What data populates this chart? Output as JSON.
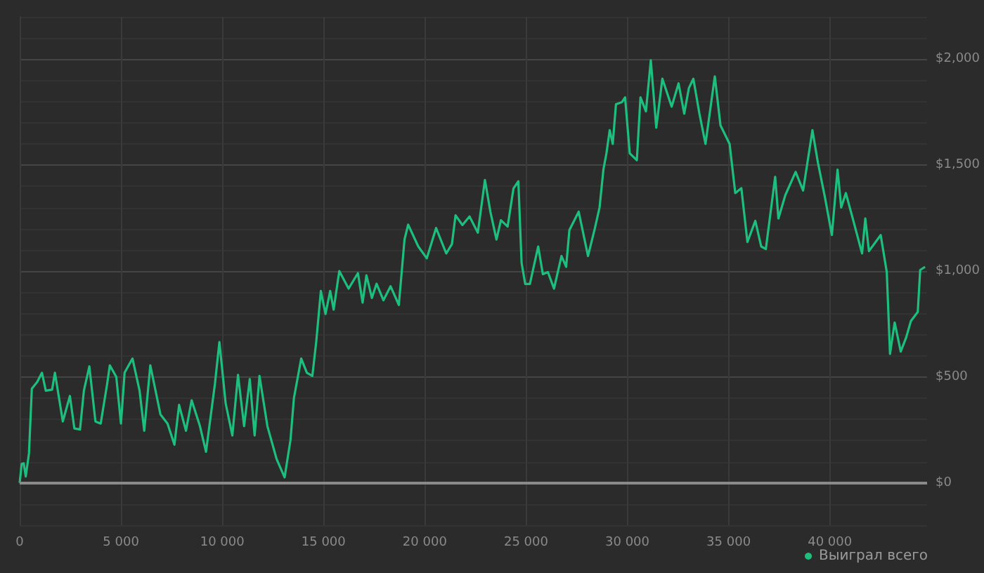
{
  "chart_data": {
    "type": "line",
    "legend": "bottom right",
    "grid": true,
    "marker": "none",
    "line_style": "solid",
    "xlim": [
      0,
      44800
    ],
    "ylim": [
      -200,
      2200
    ],
    "xticks": [
      0,
      {
        "value": 5000,
        "label": "5 000"
      },
      {
        "value": 10000,
        "label": "10 000"
      },
      {
        "value": 15000,
        "label": "15 000"
      },
      {
        "value": 20000,
        "label": "20 000"
      },
      {
        "value": 25000,
        "label": "25 000"
      },
      {
        "value": 30000,
        "label": "30 000"
      },
      {
        "value": 35000,
        "label": "35 000"
      },
      {
        "value": 40000,
        "label": "40 000"
      }
    ],
    "yticks": [
      {
        "value": -200,
        "label": null
      },
      {
        "value": -100,
        "label": null
      },
      {
        "value": 0,
        "label": "$0"
      },
      {
        "value": 100,
        "label": null
      },
      {
        "value": 200,
        "label": null
      },
      {
        "value": 300,
        "label": null
      },
      {
        "value": 400,
        "label": null
      },
      {
        "value": 500,
        "label": "$500"
      },
      {
        "value": 600,
        "label": null
      },
      {
        "value": 700,
        "label": null
      },
      {
        "value": 800,
        "label": null
      },
      {
        "value": 900,
        "label": null
      },
      {
        "value": 1000,
        "label": "$1,000"
      },
      {
        "value": 1100,
        "label": null
      },
      {
        "value": 1200,
        "label": null
      },
      {
        "value": 1300,
        "label": null
      },
      {
        "value": 1400,
        "label": null
      },
      {
        "value": 1500,
        "label": "$1,500"
      },
      {
        "value": 1600,
        "label": null
      },
      {
        "value": 1700,
        "label": null
      },
      {
        "value": 1800,
        "label": null
      },
      {
        "value": 1900,
        "label": null
      },
      {
        "value": 2000,
        "label": "$2,000"
      },
      {
        "value": 2100,
        "label": null
      },
      {
        "value": 2200,
        "label": null
      }
    ],
    "ref_lines": [
      {
        "axis": "y",
        "value": 0,
        "color": "#8a8a8a"
      }
    ],
    "series": [
      {
        "name": "Выиграл всего",
        "color": "#1dbf7e",
        "x": [
          0,
          100,
          200,
          300,
          460,
          600,
          870,
          1100,
          1290,
          1600,
          1740,
          2130,
          2480,
          2700,
          2980,
          3170,
          3440,
          3740,
          4000,
          4320,
          4450,
          4770,
          5000,
          5180,
          5570,
          5920,
          6150,
          6450,
          6950,
          7300,
          7640,
          7870,
          8210,
          8490,
          8900,
          9200,
          9640,
          9860,
          10170,
          10500,
          10780,
          11080,
          11360,
          11600,
          11840,
          12230,
          12680,
          13080,
          13370,
          13540,
          13900,
          14180,
          14450,
          14640,
          14870,
          15100,
          15330,
          15500,
          15780,
          16240,
          16700,
          16930,
          17120,
          17390,
          17620,
          17960,
          18310,
          18720,
          19000,
          19180,
          19680,
          20100,
          20560,
          21060,
          21340,
          21520,
          21860,
          22210,
          22620,
          22970,
          23240,
          23540,
          23760,
          24090,
          24380,
          24620,
          24780,
          24960,
          25190,
          25600,
          25830,
          26080,
          26380,
          26750,
          26980,
          27140,
          27600,
          28060,
          28400,
          28630,
          28820,
          28970,
          29130,
          29280,
          29440,
          29730,
          29890,
          30120,
          30470,
          30650,
          30920,
          31160,
          31430,
          31730,
          32190,
          32530,
          32810,
          33040,
          33260,
          33560,
          33860,
          34320,
          34600,
          35050,
          35330,
          35630,
          35930,
          36320,
          36610,
          36840,
          37300,
          37460,
          37800,
          38310,
          38680,
          39140,
          39410,
          39760,
          40100,
          40380,
          40560,
          40790,
          41130,
          41590,
          41750,
          41930,
          42510,
          42810,
          42970,
          43200,
          43500,
          43770,
          44000,
          44340,
          44460,
          44700
        ],
        "values": [
          0,
          90,
          92,
          30,
          140,
          445,
          477,
          520,
          435,
          440,
          520,
          290,
          410,
          257,
          252,
          435,
          550,
          290,
          280,
          468,
          555,
          500,
          280,
          520,
          587,
          435,
          246,
          555,
          323,
          280,
          180,
          368,
          246,
          390,
          268,
          147,
          467,
          665,
          375,
          224,
          510,
          268,
          490,
          224,
          505,
          268,
          114,
          26,
          202,
          400,
          587,
          520,
          505,
          665,
          906,
          797,
          906,
          818,
          1000,
          917,
          990,
          851,
          980,
          873,
          940,
          862,
          928,
          840,
          1149,
          1219,
          1116,
          1060,
          1203,
          1083,
          1127,
          1263,
          1217,
          1258,
          1181,
          1430,
          1280,
          1149,
          1240,
          1210,
          1390,
          1424,
          1038,
          939,
          939,
          1116,
          985,
          995,
          917,
          1071,
          1020,
          1193,
          1280,
          1071,
          1203,
          1300,
          1479,
          1556,
          1665,
          1600,
          1787,
          1797,
          1820,
          1556,
          1523,
          1820,
          1754,
          1995,
          1677,
          1908,
          1776,
          1886,
          1743,
          1864,
          1908,
          1743,
          1600,
          1919,
          1688,
          1600,
          1368,
          1391,
          1137,
          1237,
          1116,
          1104,
          1445,
          1248,
          1358,
          1468,
          1380,
          1665,
          1512,
          1347,
          1170,
          1479,
          1300,
          1368,
          1248,
          1083,
          1248,
          1094,
          1170,
          995,
          609,
          757,
          620,
          687,
          764,
          807,
          1005,
          1020
        ]
      }
    ]
  }
}
